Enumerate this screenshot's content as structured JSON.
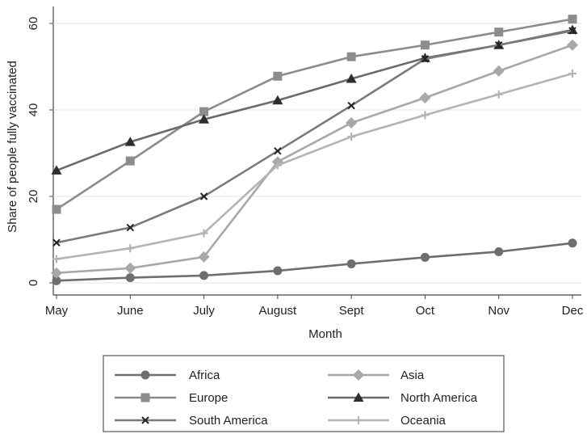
{
  "chart_data": {
    "type": "line",
    "xlabel": "Month",
    "ylabel": "Share of people fully vaccinated",
    "categories": [
      "May",
      "June",
      "July",
      "August",
      "Sept",
      "Oct",
      "Nov",
      "Dec"
    ],
    "ylim": [
      0,
      60
    ],
    "yticks": [
      0,
      20,
      40,
      60
    ],
    "grid": true,
    "legend_position": "bottom",
    "series": [
      {
        "name": "Africa",
        "marker": "circle",
        "color": "#6e6e6e",
        "values": [
          0.5,
          1.2,
          1.7,
          2.8,
          4.4,
          5.9,
          7.2,
          9.2
        ]
      },
      {
        "name": "Asia",
        "marker": "diamond",
        "color": "#a8a8a8",
        "values": [
          2.3,
          3.4,
          6.0,
          28.0,
          37.0,
          42.8,
          49.0,
          55.0
        ]
      },
      {
        "name": "Europe",
        "marker": "square",
        "color": "#8c8c8c",
        "values": [
          17.0,
          28.2,
          39.6,
          47.8,
          52.3,
          55.0,
          58.0,
          61.0
        ]
      },
      {
        "name": "North America",
        "marker": "triangle",
        "color": "#6a6a6a",
        "values": [
          26.0,
          32.6,
          37.8,
          42.2,
          47.2,
          52.0,
          55.0,
          58.5
        ]
      },
      {
        "name": "South America",
        "marker": "x",
        "color": "#7a7a7a",
        "values": [
          9.3,
          12.8,
          20.0,
          30.5,
          41.0,
          51.8,
          55.0,
          58.3
        ]
      },
      {
        "name": "Oceania",
        "marker": "plus",
        "color": "#b4b4b4",
        "values": [
          5.5,
          8.0,
          11.5,
          27.2,
          33.8,
          38.8,
          43.6,
          48.4
        ]
      }
    ]
  }
}
